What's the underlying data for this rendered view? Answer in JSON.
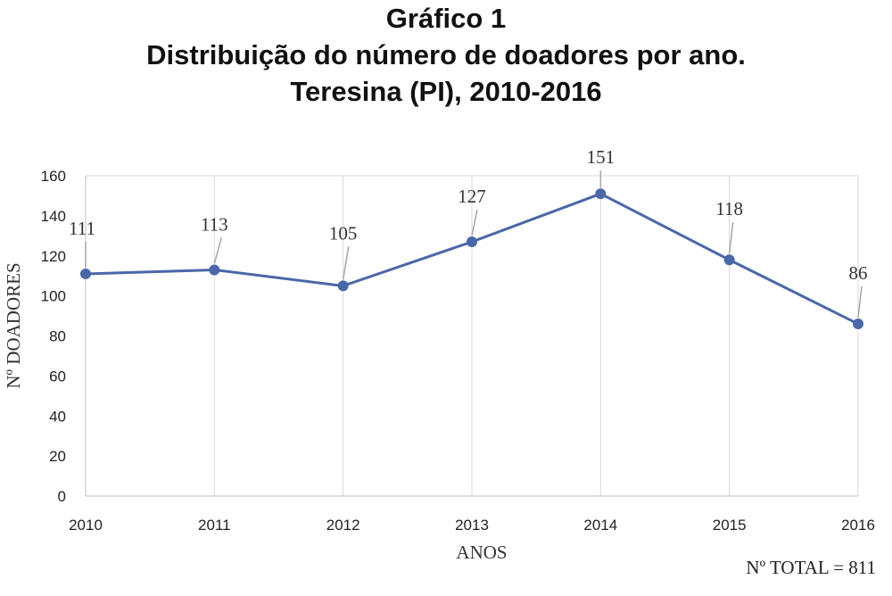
{
  "title": {
    "line1": "Gráfico 1",
    "line2": "Distribuição do número de doadores por ano.",
    "line3": "Teresina (PI), 2010-2016"
  },
  "footnote": "Nº TOTAL = 811",
  "colors": {
    "line": "#4a67a8",
    "grid": "#d9d9d9",
    "leader": "#a6a6a6"
  },
  "chart_data": {
    "type": "line",
    "title": "Gráfico 1 Distribuição do número de doadores por ano. Teresina (PI), 2010-2016",
    "xlabel": "ANOS",
    "ylabel": "Nº DOADORES",
    "categories": [
      "2010",
      "2011",
      "2012",
      "2013",
      "2014",
      "2015",
      "2016"
    ],
    "series": [
      {
        "values": [
          111,
          113,
          105,
          127,
          151,
          118,
          86
        ]
      }
    ],
    "data_labels": [
      "111",
      "113",
      "105",
      "127",
      "151",
      "118",
      "86"
    ],
    "ylim": [
      0,
      160
    ],
    "yticks": [
      0,
      20,
      40,
      60,
      80,
      100,
      120,
      140,
      160
    ],
    "grid": "vertical",
    "legend": "none"
  }
}
